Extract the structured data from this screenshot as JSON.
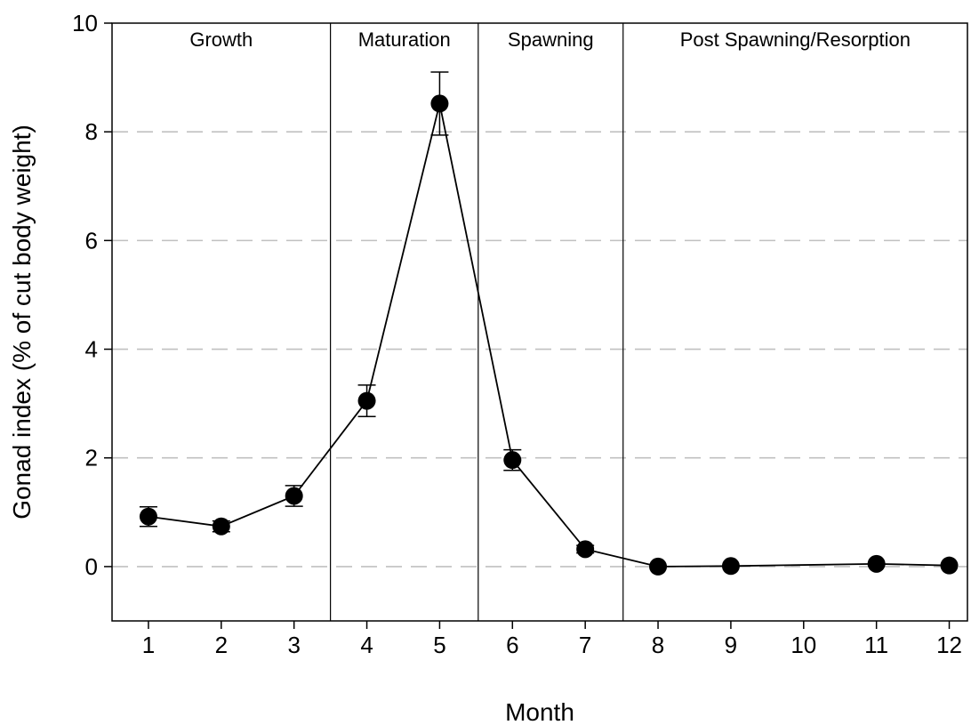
{
  "chart_data": {
    "type": "line",
    "title": "",
    "xlabel": "Month",
    "ylabel": "Gonad index (% of cut body weight)",
    "x_ticks": [
      1,
      2,
      3,
      4,
      5,
      6,
      7,
      8,
      9,
      10,
      11,
      12
    ],
    "y_ticks": [
      0,
      2,
      4,
      6,
      8,
      10
    ],
    "xlim": [
      0.5,
      12.25
    ],
    "ylim": [
      -1,
      10
    ],
    "grid": "horizontal dashed",
    "grid_lines": [
      0,
      2,
      4,
      6,
      8
    ],
    "series": [
      {
        "x": [
          1,
          2,
          3,
          4,
          5,
          6,
          7,
          8,
          9,
          11,
          12
        ],
        "y": [
          0.92,
          0.74,
          1.3,
          3.05,
          8.52,
          1.96,
          0.32,
          0.0,
          0.01,
          0.05,
          0.02
        ],
        "error": [
          0.18,
          0.1,
          0.19,
          0.29,
          0.58,
          0.19,
          0.07,
          0.02,
          0.02,
          0.03,
          0.02
        ]
      }
    ],
    "phase_boundaries": [
      3.5,
      5.53,
      7.52
    ],
    "phases": [
      {
        "label": "Growth",
        "from": 0.5,
        "to": 3.5
      },
      {
        "label": "Maturation",
        "from": 3.5,
        "to": 5.53
      },
      {
        "label": "Spawning",
        "from": 5.53,
        "to": 7.52
      },
      {
        "label": "Post Spawning/Resorption",
        "from": 7.52,
        "to": 12.25
      }
    ],
    "colors": {
      "line": "#000000",
      "marker": "#000000",
      "grid": "#c0c0c0"
    }
  }
}
